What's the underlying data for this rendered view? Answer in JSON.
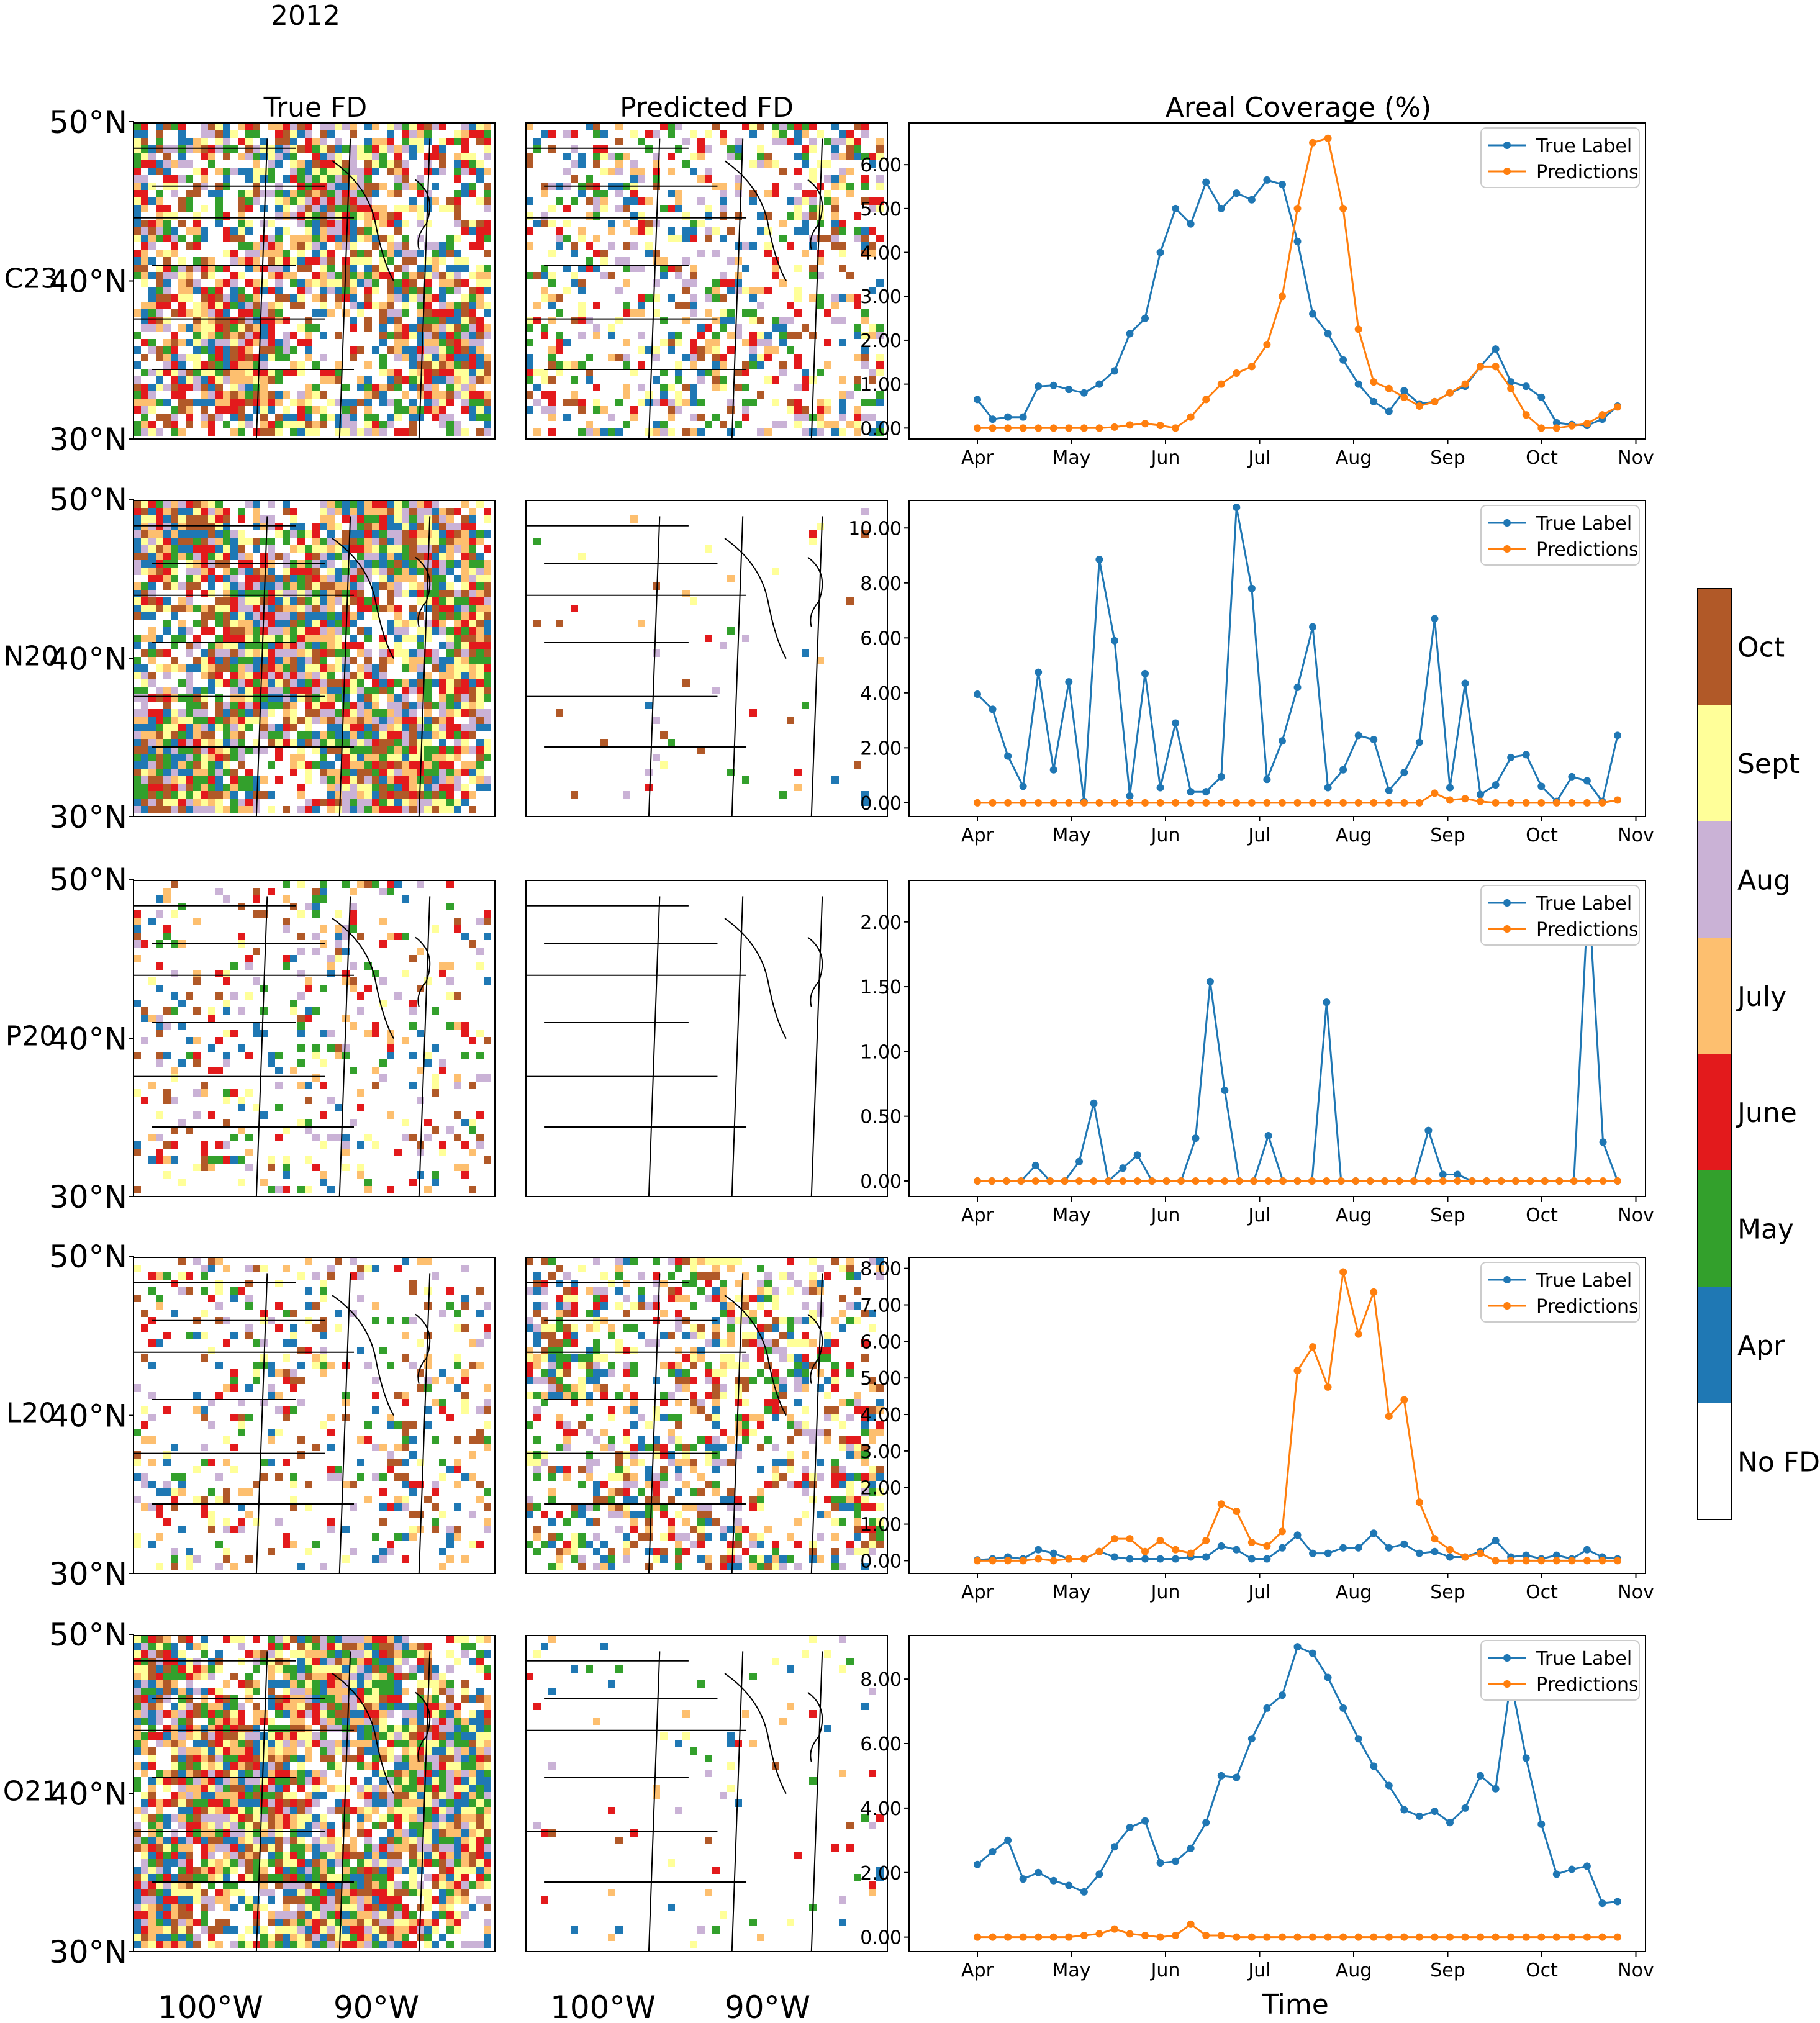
{
  "figure": {
    "year": "2012",
    "column_titles": [
      "True FD",
      "Predicted FD",
      "Areal Coverage (%)"
    ],
    "x_axis_title": "Time",
    "lat_labels": [
      "50°N",
      "40°N",
      "30°N"
    ],
    "lon_labels": [
      "100°W",
      "90°W"
    ]
  },
  "legend": {
    "true_label": "True Label",
    "predictions": "Predictions"
  },
  "colorbar": {
    "labels": [
      "Oct",
      "Sept",
      "Aug",
      "July",
      "June",
      "May",
      "Apr",
      "No FD"
    ],
    "colors": [
      "#b15928",
      "#ffff99",
      "#cab2d6",
      "#fdbf6f",
      "#e31a1c",
      "#33a02c",
      "#1f78b4",
      "#ffffff"
    ]
  },
  "series_colors": {
    "true_label": "#1f77b4",
    "predictions": "#ff7f0e"
  },
  "months": [
    "Apr",
    "May",
    "Jun",
    "Jul",
    "Aug",
    "Sep",
    "Oct",
    "Nov"
  ],
  "chart_data": [
    {
      "type": "line",
      "row_label": "C23",
      "ylim": [
        -0.25,
        6.95
      ],
      "yticks": [
        "0.00",
        "1.00",
        "2.00",
        "3.00",
        "4.00",
        "5.00",
        "6.00"
      ],
      "series": [
        {
          "name": "True Label",
          "values": [
            0.65,
            0.2,
            0.25,
            0.25,
            0.95,
            0.97,
            0.88,
            0.8,
            1.0,
            1.3,
            2.15,
            2.5,
            4.0,
            5.0,
            4.65,
            5.6,
            5.0,
            5.35,
            5.2,
            5.65,
            5.55,
            4.25,
            2.6,
            2.15,
            1.55,
            1.0,
            0.6,
            0.38,
            0.85,
            0.55,
            0.6,
            0.8,
            0.95,
            1.4,
            1.8,
            1.05,
            0.95,
            0.7,
            0.12,
            0.08,
            0.06,
            0.2,
            0.5
          ]
        },
        {
          "name": "Predictions",
          "values": [
            0.0,
            0.0,
            0.0,
            0.0,
            0.0,
            0.0,
            0.0,
            0.0,
            0.0,
            0.02,
            0.07,
            0.1,
            0.06,
            0.0,
            0.25,
            0.65,
            1.0,
            1.25,
            1.4,
            1.9,
            3.0,
            5.0,
            6.5,
            6.6,
            5.0,
            2.25,
            1.05,
            0.9,
            0.7,
            0.5,
            0.6,
            0.8,
            1.0,
            1.4,
            1.4,
            0.9,
            0.3,
            0.0,
            0.0,
            0.05,
            0.1,
            0.3,
            0.48
          ]
        }
      ]
    },
    {
      "type": "line",
      "row_label": "N20",
      "ylim": [
        -0.5,
        11.0
      ],
      "yticks": [
        "0.00",
        "2.00",
        "4.00",
        "6.00",
        "8.00",
        "10.00"
      ],
      "series": [
        {
          "name": "True Label",
          "values": [
            3.95,
            3.4,
            1.7,
            0.6,
            4.75,
            1.2,
            4.4,
            0.05,
            8.85,
            5.9,
            0.25,
            4.7,
            0.55,
            2.9,
            0.4,
            0.4,
            0.95,
            10.75,
            7.8,
            0.85,
            2.25,
            4.2,
            6.4,
            0.55,
            1.2,
            2.45,
            2.3,
            0.45,
            1.1,
            2.2,
            6.7,
            0.55,
            4.35,
            0.3,
            0.65,
            1.65,
            1.75,
            0.6,
            0.05,
            0.95,
            0.8,
            0.05,
            2.45
          ]
        },
        {
          "name": "Predictions",
          "values": [
            0.0,
            0.0,
            0.0,
            0.0,
            0.0,
            0.0,
            0.0,
            0.0,
            0.0,
            0.0,
            0.0,
            0.0,
            0.0,
            0.0,
            0.0,
            0.0,
            0.0,
            0.0,
            0.0,
            0.0,
            0.0,
            0.0,
            0.0,
            0.0,
            0.0,
            0.0,
            0.0,
            0.0,
            0.0,
            0.0,
            0.35,
            0.1,
            0.15,
            0.05,
            0.0,
            0.0,
            0.0,
            0.0,
            0.0,
            0.0,
            0.0,
            0.0,
            0.1
          ]
        }
      ]
    },
    {
      "type": "line",
      "row_label": "P20",
      "ylim": [
        -0.12,
        2.32
      ],
      "yticks": [
        "0.00",
        "0.50",
        "1.00",
        "1.50",
        "2.00"
      ],
      "series": [
        {
          "name": "True Label",
          "values": [
            0.0,
            0.0,
            0.0,
            0.0,
            0.12,
            0.0,
            0.0,
            0.15,
            0.6,
            0.0,
            0.1,
            0.2,
            0.0,
            0.0,
            0.0,
            0.33,
            1.54,
            0.7,
            0.0,
            0.0,
            0.35,
            0.0,
            0.0,
            0.0,
            1.38,
            0.0,
            0.0,
            0.0,
            0.0,
            0.0,
            0.0,
            0.39,
            0.05,
            0.05,
            0.0,
            0.0,
            0.0,
            0.0,
            0.0,
            0.0,
            0.0,
            0.0,
            2.25,
            0.3,
            0.0
          ]
        },
        {
          "name": "Predictions",
          "values": [
            0.0,
            0.0,
            0.0,
            0.0,
            0.0,
            0.0,
            0.0,
            0.0,
            0.0,
            0.0,
            0.0,
            0.0,
            0.0,
            0.0,
            0.0,
            0.0,
            0.0,
            0.0,
            0.0,
            0.0,
            0.0,
            0.0,
            0.0,
            0.0,
            0.0,
            0.0,
            0.0,
            0.0,
            0.0,
            0.0,
            0.0,
            0.0,
            0.0,
            0.0,
            0.0,
            0.0,
            0.0,
            0.0,
            0.0,
            0.0,
            0.0,
            0.0,
            0.0,
            0.0,
            0.0
          ]
        }
      ]
    },
    {
      "type": "line",
      "row_label": "L20",
      "ylim": [
        -0.35,
        8.3
      ],
      "yticks": [
        "0.00",
        "1.00",
        "2.00",
        "3.00",
        "4.00",
        "5.00",
        "6.00",
        "7.00",
        "8.00"
      ],
      "series": [
        {
          "name": "True Label",
          "values": [
            0.02,
            0.05,
            0.1,
            0.05,
            0.3,
            0.2,
            0.05,
            0.05,
            0.25,
            0.1,
            0.05,
            0.05,
            0.05,
            0.05,
            0.1,
            0.1,
            0.4,
            0.3,
            0.05,
            0.05,
            0.35,
            0.7,
            0.2,
            0.2,
            0.35,
            0.35,
            0.75,
            0.35,
            0.45,
            0.2,
            0.25,
            0.1,
            0.1,
            0.25,
            0.55,
            0.1,
            0.15,
            0.05,
            0.15,
            0.05,
            0.3,
            0.1,
            0.05
          ]
        },
        {
          "name": "Predictions",
          "values": [
            0.0,
            0.0,
            0.0,
            0.0,
            0.05,
            0.0,
            0.05,
            0.05,
            0.25,
            0.6,
            0.6,
            0.25,
            0.55,
            0.3,
            0.2,
            0.55,
            1.55,
            1.35,
            0.5,
            0.4,
            0.8,
            5.2,
            5.85,
            4.75,
            7.9,
            6.2,
            7.35,
            3.95,
            4.4,
            1.6,
            0.6,
            0.3,
            0.1,
            0.2,
            0.0,
            0.0,
            0.0,
            0.0,
            0.0,
            0.0,
            0.0,
            0.0,
            0.0
          ]
        }
      ]
    },
    {
      "type": "line",
      "row_label": "O21",
      "ylim": [
        -0.45,
        9.35
      ],
      "yticks": [
        "0.00",
        "2.00",
        "4.00",
        "6.00",
        "8.00"
      ],
      "series": [
        {
          "name": "True Label",
          "values": [
            2.25,
            2.65,
            3.0,
            1.8,
            2.0,
            1.75,
            1.6,
            1.4,
            1.95,
            2.8,
            3.4,
            3.6,
            2.3,
            2.35,
            2.75,
            3.55,
            5.0,
            4.95,
            6.15,
            7.1,
            7.5,
            9.0,
            8.8,
            8.05,
            7.1,
            6.15,
            5.3,
            4.7,
            3.95,
            3.75,
            3.9,
            3.55,
            4.0,
            5.0,
            4.6,
            7.95,
            5.55,
            3.5,
            1.95,
            2.1,
            2.2,
            1.05,
            1.1
          ]
        },
        {
          "name": "Predictions",
          "values": [
            0.0,
            0.0,
            0.0,
            0.0,
            0.0,
            0.0,
            0.0,
            0.05,
            0.1,
            0.25,
            0.1,
            0.05,
            0.0,
            0.05,
            0.4,
            0.05,
            0.05,
            0.0,
            0.0,
            0.0,
            0.0,
            0.0,
            0.0,
            0.0,
            0.0,
            0.0,
            0.0,
            0.0,
            0.0,
            0.0,
            0.0,
            0.0,
            0.0,
            0.0,
            0.0,
            0.0,
            0.0,
            0.0,
            0.0,
            0.0,
            0.0,
            0.0,
            0.0
          ]
        }
      ]
    }
  ]
}
